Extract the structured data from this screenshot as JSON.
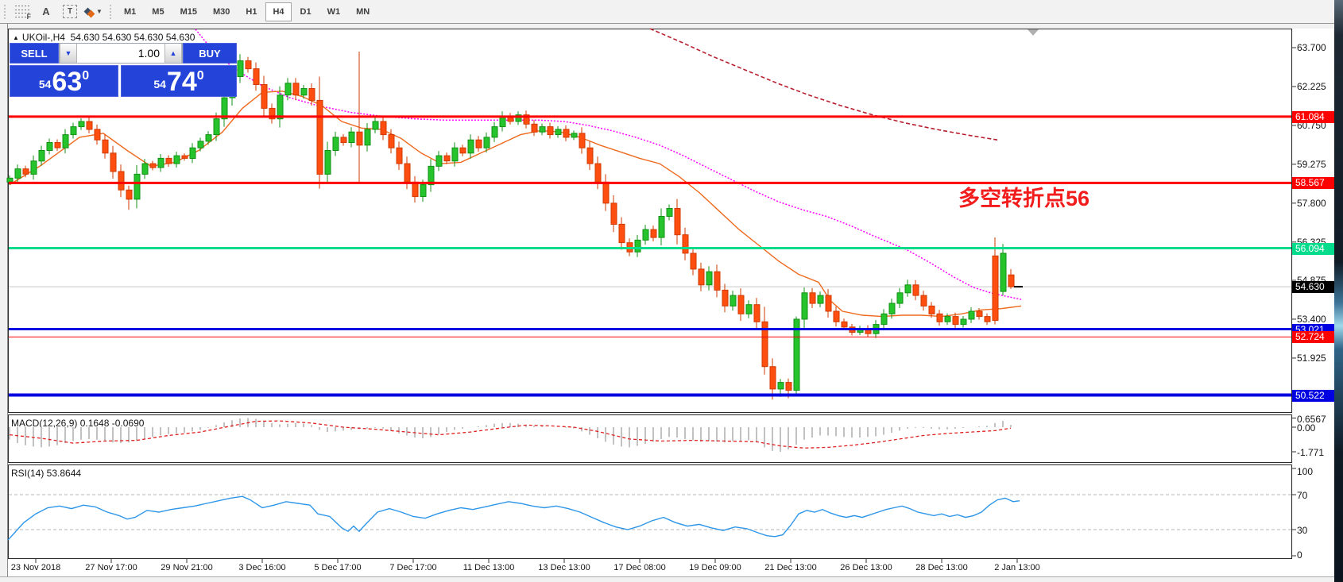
{
  "toolbar": {
    "tools": [
      {
        "name": "fibonacci",
        "glyph": "F"
      },
      {
        "name": "text",
        "glyph": "A"
      },
      {
        "name": "text-label",
        "glyph": "T"
      },
      {
        "name": "arrows",
        "glyph": "▼"
      }
    ],
    "timeframes": [
      "M1",
      "M5",
      "M15",
      "M30",
      "H1",
      "H4",
      "D1",
      "W1",
      "MN"
    ],
    "active_timeframe": "H4"
  },
  "header": {
    "symbol_marker": "▲",
    "title": "UKOil-,H4",
    "ohlc_text": "54.630 54.630 54.630 54.630"
  },
  "trade_panel": {
    "sell_label": "SELL",
    "buy_label": "BUY",
    "volume": "1.00",
    "sell_price": {
      "small": "54",
      "big": "63",
      "sup": "0"
    },
    "buy_price": {
      "small": "54",
      "big": "74",
      "sup": "0"
    }
  },
  "annotation": {
    "text": "多空转折点56",
    "color": "#f21c1c"
  },
  "price_axis": {
    "ticks": [
      "63.700",
      "62.225",
      "60.750",
      "59.275",
      "57.800",
      "56.325",
      "54.875",
      "53.400",
      "51.925"
    ],
    "current": {
      "label": "54.630",
      "value": 54.63
    }
  },
  "levels": [
    {
      "value": 61.084,
      "label": "61.084",
      "color": "#fe0000",
      "width": 3
    },
    {
      "value": 58.567,
      "label": "58.567",
      "color": "#fe0000",
      "width": 3
    },
    {
      "value": 56.094,
      "label": "56.094",
      "color": "#00dc8c",
      "width": 3
    },
    {
      "value": 53.021,
      "label": "53.021",
      "color": "#0000e0",
      "width": 3
    },
    {
      "value": 52.724,
      "label": "52.724",
      "color": "#fe0000",
      "width": 1
    },
    {
      "value": 50.522,
      "label": "50.522",
      "color": "#0000e0",
      "width": 4
    }
  ],
  "time_axis": [
    "23 Nov 2018",
    "27 Nov 17:00",
    "29 Nov 21:00",
    "3 Dec 16:00",
    "5 Dec 17:00",
    "7 Dec 17:00",
    "11 Dec 13:00",
    "13 Dec 13:00",
    "17 Dec 08:00",
    "19 Dec 09:00",
    "21 Dec 13:00",
    "26 Dec 13:00",
    "28 Dec 13:00",
    "2 Jan 13:00"
  ],
  "macd": {
    "label_text": "MACD(12,26,9) 0.1648 -0.0690",
    "scale": [
      {
        "label": "0.6567",
        "value": 0.6567
      },
      {
        "label": "0.00",
        "value": 0
      },
      {
        "label": "-1.771",
        "value": -1.771
      }
    ]
  },
  "rsi": {
    "label_text": "RSI(14) 53.8644",
    "scale": [
      {
        "label": "100",
        "value": 100
      },
      {
        "label": "70",
        "value": 70
      },
      {
        "label": "30",
        "value": 30
      },
      {
        "label": "0",
        "value": 0
      }
    ],
    "levels": [
      70,
      30
    ]
  },
  "chart_data": {
    "type": "candlestick",
    "symbol": "UKOil-",
    "timeframe": "H4",
    "first_open": 58.6,
    "closes": [
      58.75,
      59.1,
      58.9,
      59.4,
      59.8,
      60.1,
      59.9,
      60.4,
      60.7,
      60.9,
      60.6,
      60.2,
      59.7,
      59.0,
      58.3,
      57.95,
      58.9,
      59.3,
      59.15,
      59.5,
      59.3,
      59.6,
      59.5,
      59.9,
      60.15,
      60.4,
      61.0,
      61.8,
      62.6,
      63.2,
      62.9,
      62.3,
      61.4,
      61.0,
      61.9,
      62.35,
      61.9,
      62.15,
      61.7,
      58.9,
      59.8,
      60.3,
      60.1,
      60.5,
      60.0,
      60.6,
      60.9,
      60.4,
      59.9,
      59.3,
      58.6,
      58.05,
      58.5,
      59.2,
      59.6,
      59.4,
      59.9,
      59.7,
      60.2,
      59.9,
      60.3,
      60.7,
      61.1,
      60.9,
      61.15,
      60.8,
      60.5,
      60.7,
      60.4,
      60.6,
      60.3,
      60.45,
      59.9,
      59.3,
      58.6,
      57.8,
      57.0,
      56.3,
      55.95,
      56.4,
      56.8,
      56.5,
      57.3,
      57.6,
      56.6,
      55.9,
      55.3,
      54.7,
      55.2,
      54.5,
      53.9,
      54.3,
      53.6,
      53.95,
      53.3,
      51.6,
      50.75,
      51.0,
      50.7,
      53.4,
      54.4,
      54.0,
      54.3,
      53.7,
      53.3,
      53.1,
      52.9,
      53.05,
      52.85,
      53.2,
      53.6,
      54.0,
      54.4,
      54.7,
      54.3,
      53.9,
      53.6,
      53.3,
      53.5,
      53.2,
      53.4,
      53.7,
      53.5,
      53.3,
      53.35,
      55.9,
      54.63
    ],
    "overrides": {
      "15": {
        "l": 57.55
      },
      "29": {
        "h": 63.45
      },
      "39": {
        "l": 58.35
      },
      "44": {
        "h": 63.55,
        "l": 58.6
      },
      "95": {
        "l": 51.3
      },
      "96": {
        "l": 50.35
      },
      "97": {
        "l": 50.45
      },
      "98": {
        "l": 50.4
      },
      "99": {
        "l": 50.55,
        "h": 53.5
      },
      "100": {
        "h": 54.6
      },
      "113": {
        "h": 54.9
      },
      "124": {
        "o": 55.8,
        "h": 56.5,
        "l": 53.2,
        "c": 53.35
      },
      "125": {
        "o": 54.45,
        "h": 56.25,
        "l": 54.3,
        "c": 55.9
      },
      "126": {
        "o": 55.08,
        "h": 55.3,
        "l": 54.55,
        "c": 54.63
      }
    },
    "colors": {
      "bull": "#25c32c",
      "bull_edge": "#129114",
      "bear": "#ff4e10",
      "bear_edge": "#cf3a00",
      "ma_fast": "#ee6a1e",
      "ma_slow": "#ff00ff",
      "ma_long": "#b81e2e",
      "macd_hist": "#c2c2c2",
      "macd_signal": "#e02020",
      "rsi_line": "#2e96e8",
      "bid_line": "#c8c8c8"
    },
    "ma_fast": [
      [
        12,
        58.5
      ],
      [
        50,
        59.2
      ],
      [
        100,
        60.3
      ],
      [
        130,
        60.45
      ],
      [
        160,
        59.8
      ],
      [
        190,
        59.2
      ],
      [
        220,
        59.35
      ],
      [
        250,
        59.8
      ],
      [
        280,
        60.5
      ],
      [
        305,
        61.4
      ],
      [
        330,
        62.0
      ],
      [
        355,
        62.05
      ],
      [
        380,
        61.85
      ],
      [
        405,
        61.5
      ],
      [
        430,
        60.9
      ],
      [
        455,
        60.65
      ],
      [
        480,
        60.6
      ],
      [
        505,
        60.25
      ],
      [
        530,
        59.7
      ],
      [
        555,
        59.3
      ],
      [
        580,
        59.35
      ],
      [
        605,
        59.7
      ],
      [
        630,
        60.05
      ],
      [
        655,
        60.4
      ],
      [
        680,
        60.55
      ],
      [
        705,
        60.5
      ],
      [
        730,
        60.3
      ],
      [
        755,
        60.0
      ],
      [
        780,
        59.75
      ],
      [
        805,
        59.5
      ],
      [
        830,
        59.3
      ],
      [
        855,
        58.8
      ],
      [
        880,
        58.2
      ],
      [
        905,
        57.5
      ],
      [
        930,
        56.8
      ],
      [
        955,
        56.2
      ],
      [
        980,
        55.6
      ],
      [
        1005,
        55.1
      ],
      [
        1030,
        54.8
      ],
      [
        1045,
        54.1
      ],
      [
        1060,
        53.7
      ],
      [
        1085,
        53.55
      ],
      [
        1110,
        53.5
      ],
      [
        1135,
        53.55
      ],
      [
        1160,
        53.55
      ],
      [
        1185,
        53.5
      ],
      [
        1210,
        53.6
      ],
      [
        1235,
        53.75
      ],
      [
        1260,
        53.8
      ],
      [
        1285,
        53.9
      ]
    ],
    "ma_slow": [
      [
        246,
        64.4
      ],
      [
        270,
        63.5
      ],
      [
        300,
        62.8
      ],
      [
        330,
        62.25
      ],
      [
        365,
        61.8
      ],
      [
        400,
        61.5
      ],
      [
        440,
        61.25
      ],
      [
        480,
        61.1
      ],
      [
        520,
        61.0
      ],
      [
        560,
        60.95
      ],
      [
        600,
        60.95
      ],
      [
        640,
        60.95
      ],
      [
        680,
        60.95
      ],
      [
        710,
        60.9
      ],
      [
        740,
        60.75
      ],
      [
        770,
        60.55
      ],
      [
        800,
        60.3
      ],
      [
        830,
        60.0
      ],
      [
        860,
        59.6
      ],
      [
        890,
        59.15
      ],
      [
        920,
        58.7
      ],
      [
        950,
        58.25
      ],
      [
        980,
        57.85
      ],
      [
        1010,
        57.55
      ],
      [
        1040,
        57.3
      ],
      [
        1070,
        56.95
      ],
      [
        1100,
        56.55
      ],
      [
        1140,
        56.05
      ],
      [
        1170,
        55.55
      ],
      [
        1200,
        55.0
      ],
      [
        1225,
        54.6
      ],
      [
        1250,
        54.37
      ],
      [
        1285,
        54.15
      ]
    ],
    "ma_long": [
      [
        818,
        64.42
      ],
      [
        858,
        63.9
      ],
      [
        898,
        63.35
      ],
      [
        938,
        62.85
      ],
      [
        978,
        62.35
      ],
      [
        1018,
        61.9
      ],
      [
        1058,
        61.5
      ],
      [
        1098,
        61.15
      ],
      [
        1138,
        60.85
      ],
      [
        1178,
        60.6
      ],
      [
        1218,
        60.38
      ],
      [
        1255,
        60.2
      ]
    ],
    "macd_hist": [
      -0.9,
      -1.15,
      -1.3,
      -1.4,
      -1.45,
      -1.4,
      -1.3,
      -1.15,
      -1.0,
      -0.9,
      -0.85,
      -0.9,
      -1.0,
      -1.1,
      -1.15,
      -1.1,
      -1.0,
      -0.85,
      -0.7,
      -0.6,
      -0.5,
      -0.45,
      -0.4,
      -0.3,
      -0.2,
      -0.05,
      0.15,
      0.35,
      0.5,
      0.62,
      0.65,
      0.6,
      0.45,
      0.3,
      0.2,
      0.25,
      0.3,
      0.25,
      0.15,
      -0.2,
      -0.35,
      -0.3,
      -0.25,
      -0.2,
      -0.15,
      -0.1,
      -0.05,
      -0.1,
      -0.25,
      -0.45,
      -0.6,
      -0.75,
      -0.8,
      -0.7,
      -0.5,
      -0.35,
      -0.2,
      -0.1,
      0.0,
      0.05,
      0.15,
      0.25,
      0.3,
      0.3,
      0.25,
      0.15,
      0.1,
      0.05,
      0.0,
      0.0,
      -0.05,
      -0.1,
      -0.3,
      -0.55,
      -0.8,
      -1.05,
      -1.25,
      -1.4,
      -1.45,
      -1.35,
      -1.2,
      -1.05,
      -0.85,
      -0.7,
      -0.75,
      -0.85,
      -0.95,
      -1.05,
      -1.0,
      -1.05,
      -1.1,
      -1.0,
      -1.05,
      -0.95,
      -1.1,
      -1.45,
      -1.7,
      -1.77,
      -1.6,
      -1.25,
      -0.9,
      -0.75,
      -0.6,
      -0.6,
      -0.65,
      -0.7,
      -0.75,
      -0.75,
      -0.7,
      -0.65,
      -0.55,
      -0.4,
      -0.25,
      -0.1,
      -0.05,
      -0.05,
      -0.1,
      -0.15,
      -0.15,
      -0.1,
      -0.05,
      0.0,
      0.05,
      0.1,
      0.3,
      0.45,
      0.16
    ],
    "macd_signal": [
      [
        0,
        -0.55
      ],
      [
        4,
        -0.8
      ],
      [
        8,
        -1.15
      ],
      [
        12,
        -1.0
      ],
      [
        16,
        -0.95
      ],
      [
        20,
        -0.6
      ],
      [
        24,
        -0.35
      ],
      [
        28,
        0.1
      ],
      [
        31,
        0.42
      ],
      [
        34,
        0.45
      ],
      [
        38,
        0.3
      ],
      [
        42,
        0.0
      ],
      [
        46,
        -0.15
      ],
      [
        50,
        -0.35
      ],
      [
        54,
        -0.55
      ],
      [
        58,
        -0.35
      ],
      [
        62,
        -0.05
      ],
      [
        65,
        0.15
      ],
      [
        68,
        0.1
      ],
      [
        71,
        0.0
      ],
      [
        74,
        -0.3
      ],
      [
        78,
        -0.85
      ],
      [
        82,
        -1.0
      ],
      [
        86,
        -0.95
      ],
      [
        90,
        -1.0
      ],
      [
        94,
        -1.05
      ],
      [
        97,
        -1.35
      ],
      [
        100,
        -1.5
      ],
      [
        103,
        -1.45
      ],
      [
        106,
        -1.3
      ],
      [
        109,
        -1.1
      ],
      [
        112,
        -0.85
      ],
      [
        115,
        -0.6
      ],
      [
        118,
        -0.45
      ],
      [
        121,
        -0.35
      ],
      [
        124,
        -0.25
      ],
      [
        126,
        -0.07
      ]
    ],
    "rsi": [
      [
        10,
        18
      ],
      [
        18,
        26
      ],
      [
        30,
        38
      ],
      [
        45,
        48
      ],
      [
        60,
        55
      ],
      [
        75,
        57
      ],
      [
        90,
        54
      ],
      [
        105,
        58
      ],
      [
        120,
        56
      ],
      [
        135,
        50
      ],
      [
        150,
        46
      ],
      [
        160,
        42
      ],
      [
        170,
        44
      ],
      [
        185,
        52
      ],
      [
        200,
        50
      ],
      [
        215,
        53
      ],
      [
        230,
        55
      ],
      [
        245,
        57
      ],
      [
        260,
        60
      ],
      [
        275,
        63
      ],
      [
        290,
        66
      ],
      [
        305,
        68
      ],
      [
        315,
        64
      ],
      [
        330,
        55
      ],
      [
        345,
        58
      ],
      [
        360,
        62
      ],
      [
        375,
        60
      ],
      [
        390,
        58
      ],
      [
        400,
        48
      ],
      [
        415,
        45
      ],
      [
        430,
        32
      ],
      [
        438,
        28
      ],
      [
        445,
        34
      ],
      [
        452,
        28
      ],
      [
        460,
        36
      ],
      [
        475,
        50
      ],
      [
        490,
        54
      ],
      [
        505,
        50
      ],
      [
        520,
        45
      ],
      [
        535,
        43
      ],
      [
        550,
        48
      ],
      [
        565,
        52
      ],
      [
        580,
        55
      ],
      [
        595,
        53
      ],
      [
        610,
        56
      ],
      [
        625,
        59
      ],
      [
        640,
        62
      ],
      [
        655,
        60
      ],
      [
        670,
        57
      ],
      [
        685,
        55
      ],
      [
        700,
        57
      ],
      [
        715,
        54
      ],
      [
        730,
        50
      ],
      [
        745,
        44
      ],
      [
        760,
        38
      ],
      [
        775,
        33
      ],
      [
        790,
        30
      ],
      [
        805,
        34
      ],
      [
        820,
        40
      ],
      [
        835,
        44
      ],
      [
        850,
        38
      ],
      [
        865,
        34
      ],
      [
        880,
        36
      ],
      [
        895,
        32
      ],
      [
        910,
        29
      ],
      [
        925,
        33
      ],
      [
        940,
        31
      ],
      [
        955,
        26
      ],
      [
        965,
        23
      ],
      [
        975,
        22
      ],
      [
        985,
        24
      ],
      [
        995,
        35
      ],
      [
        1005,
        48
      ],
      [
        1015,
        52
      ],
      [
        1025,
        50
      ],
      [
        1035,
        53
      ],
      [
        1045,
        49
      ],
      [
        1055,
        46
      ],
      [
        1065,
        44
      ],
      [
        1075,
        46
      ],
      [
        1085,
        44
      ],
      [
        1095,
        47
      ],
      [
        1105,
        50
      ],
      [
        1115,
        53
      ],
      [
        1125,
        55
      ],
      [
        1135,
        57
      ],
      [
        1145,
        54
      ],
      [
        1155,
        50
      ],
      [
        1165,
        48
      ],
      [
        1175,
        46
      ],
      [
        1185,
        48
      ],
      [
        1195,
        45
      ],
      [
        1205,
        47
      ],
      [
        1215,
        44
      ],
      [
        1225,
        46
      ],
      [
        1235,
        50
      ],
      [
        1245,
        58
      ],
      [
        1255,
        64
      ],
      [
        1265,
        66
      ],
      [
        1275,
        62
      ],
      [
        1283,
        63
      ]
    ]
  }
}
